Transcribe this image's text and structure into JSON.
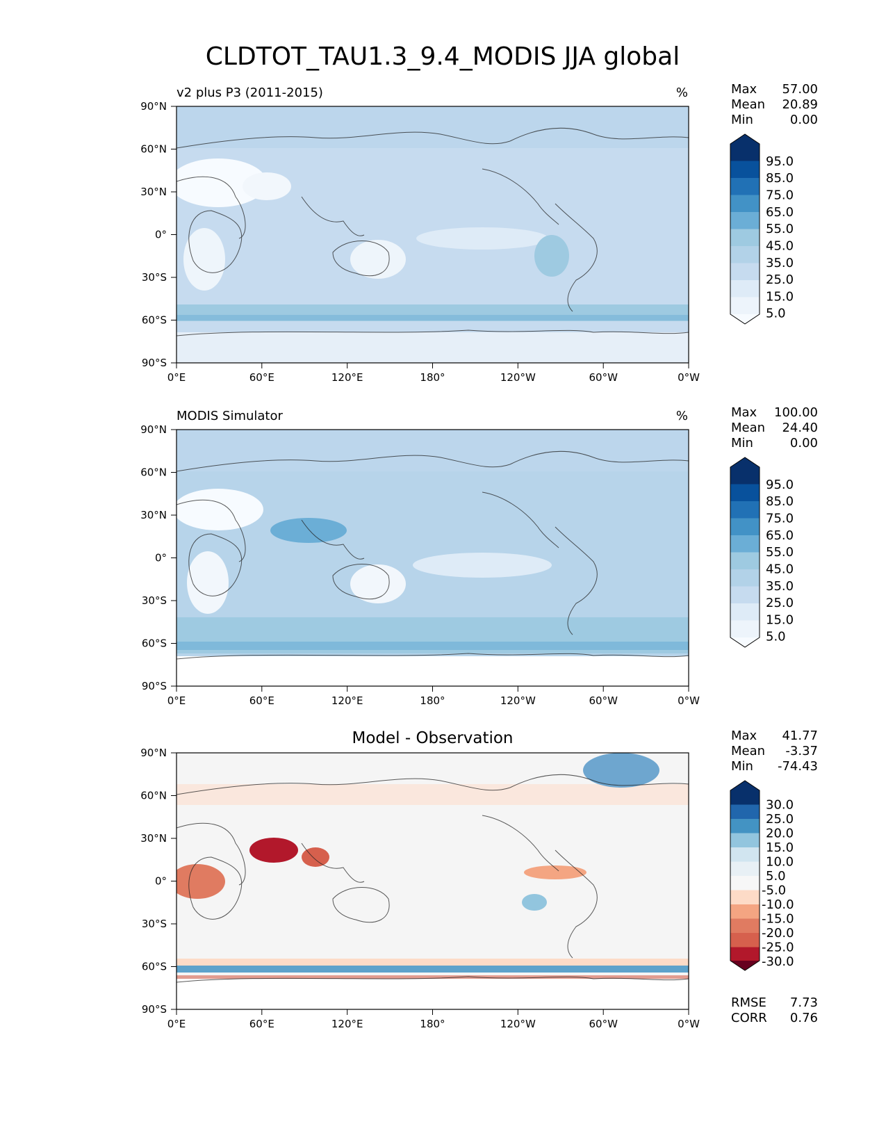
{
  "title": "CLDTOT_TAU1.3_9.4_MODIS JJA global",
  "lat_ticks": [
    "90°N",
    "60°N",
    "30°N",
    "0°",
    "30°S",
    "60°S",
    "90°S"
  ],
  "lon_ticks": [
    "0°E",
    "60°E",
    "120°E",
    "180°",
    "120°W",
    "60°W",
    "0°W"
  ],
  "panels": [
    {
      "id": "test",
      "left_title": "v2 plus P3 (2011-2015)",
      "center_title": "",
      "units": "%",
      "stats": [
        {
          "label": "Max",
          "value": "57.00"
        },
        {
          "label": "Mean",
          "value": "20.89"
        },
        {
          "label": "Min",
          "value": "0.00"
        }
      ],
      "colorbar": {
        "labels": [
          "95.0",
          "85.0",
          "75.0",
          "65.0",
          "55.0",
          "45.0",
          "35.0",
          "25.0",
          "15.0",
          "5.0"
        ],
        "colors": [
          "#08306b",
          "#08519c",
          "#2171b5",
          "#4292c6",
          "#6baed6",
          "#9ecae1",
          "#b2d2e8",
          "#c6dbef",
          "#deebf7",
          "#f7fbff"
        ]
      },
      "footer_stats": []
    },
    {
      "id": "ref",
      "left_title": "MODIS Simulator",
      "center_title": "",
      "units": "%",
      "stats": [
        {
          "label": "Max",
          "value": "100.00"
        },
        {
          "label": "Mean",
          "value": "24.40"
        },
        {
          "label": "Min",
          "value": "0.00"
        }
      ],
      "colorbar": {
        "labels": [
          "95.0",
          "85.0",
          "75.0",
          "65.0",
          "55.0",
          "45.0",
          "35.0",
          "25.0",
          "15.0",
          "5.0"
        ],
        "colors": [
          "#08306b",
          "#08519c",
          "#2171b5",
          "#4292c6",
          "#6baed6",
          "#9ecae1",
          "#b2d2e8",
          "#c6dbef",
          "#deebf7",
          "#f7fbff"
        ]
      },
      "footer_stats": []
    },
    {
      "id": "diff",
      "left_title": "",
      "center_title": "Model - Observation",
      "units": "",
      "stats": [
        {
          "label": "Max",
          "value": "41.77"
        },
        {
          "label": "Mean",
          "value": "-3.37"
        },
        {
          "label": "Min",
          "value": "-74.43"
        }
      ],
      "colorbar": {
        "labels": [
          "30.0",
          "25.0",
          "20.0",
          "15.0",
          "10.0",
          "5.0",
          "-5.0",
          "-10.0",
          "-15.0",
          "-20.0",
          "-25.0",
          "-30.0"
        ],
        "colors": [
          "#08306b",
          "#2166ac",
          "#4393c3",
          "#92c5de",
          "#d1e5f0",
          "#e8f0f5",
          "#f7f7f7",
          "#fddbc7",
          "#f4a582",
          "#e07b61",
          "#d6604d",
          "#b2182b",
          "#67001f"
        ]
      },
      "footer_stats": [
        {
          "label": "RMSE",
          "value": "7.73"
        },
        {
          "label": "CORR",
          "value": "0.76"
        }
      ]
    }
  ]
}
